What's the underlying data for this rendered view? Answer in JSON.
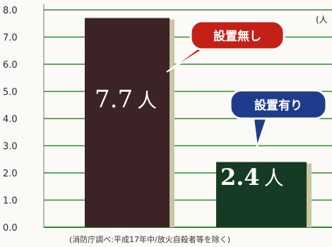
{
  "chart_data": {
    "type": "bar",
    "categories": [
      "設置無し",
      "設置有り"
    ],
    "values": [
      7.7,
      2.4
    ],
    "ylim": [
      0,
      8
    ],
    "yticks": [
      "0.0",
      "1.0",
      "2.0",
      "3.0",
      "4.0",
      "5.0",
      "6.0",
      "7.0",
      "8.0"
    ],
    "grid": true,
    "unit_label": "(人",
    "value_labels": [
      {
        "number": "7.7",
        "unit": "人"
      },
      {
        "number": "2.4",
        "unit": "人"
      }
    ],
    "callouts": [
      {
        "text": "設置無し",
        "color": "#c42018"
      },
      {
        "text": "設置有り",
        "color": "#1f3c8c"
      }
    ],
    "bar_colors": [
      "#3b2326",
      "#163b24"
    ],
    "grid_color": "#2e8b2e",
    "note": "(消防庁調べ:平成17年中/放火自殺者等を除く)"
  }
}
